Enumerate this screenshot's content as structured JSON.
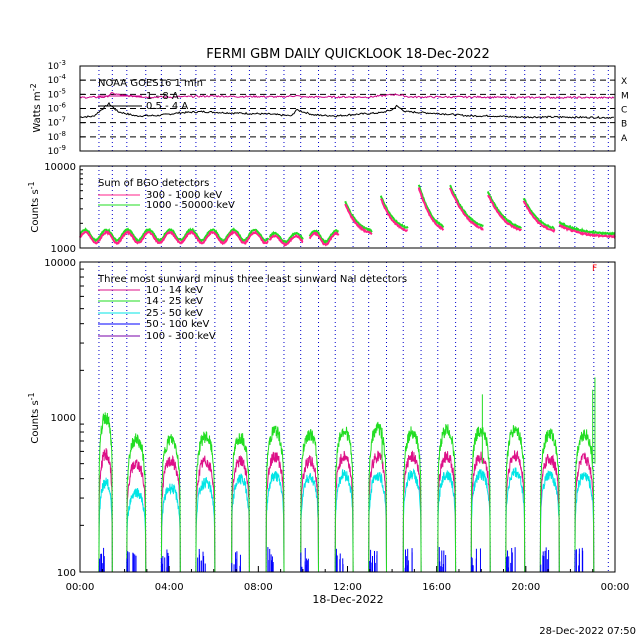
{
  "title": "FERMI GBM DAILY QUICKLOOK   18-Dec-2022",
  "footer_timestamp": "28-Dec-2022 07:50",
  "colors": {
    "axis": "#000000",
    "orbit_line": "#0000cc",
    "goes_short": "#cc0088",
    "goes_long": "#000000",
    "bgo_300_1000": "#ff2288",
    "bgo_1000_50000": "#22dd22",
    "nai_10_14": "#dd1188",
    "nai_14_25": "#22dd22",
    "nai_25_50": "#00e5e5",
    "nai_50_100": "#0000ff",
    "nai_100_300": "#7700aa",
    "flag": "#ff0000"
  },
  "chart_data": [
    {
      "id": "goes",
      "type": "line",
      "ylabel": "Watts m",
      "ylabel_sup": "-2",
      "yscale": "log",
      "ylim": [
        1e-09,
        0.001
      ],
      "xlim_hours": [
        0,
        24
      ],
      "y_ticks": [
        {
          "value": 0.001,
          "base": "10",
          "exp": "-3"
        },
        {
          "value": 0.0001,
          "base": "10",
          "exp": "-4"
        },
        {
          "value": 1e-05,
          "base": "10",
          "exp": "-5"
        },
        {
          "value": 1e-06,
          "base": "10",
          "exp": "-6"
        },
        {
          "value": 1e-07,
          "base": "10",
          "exp": "-7"
        },
        {
          "value": 1e-08,
          "base": "10",
          "exp": "-8"
        },
        {
          "value": 1e-09,
          "base": "10",
          "exp": "-9"
        }
      ],
      "flare_classes": [
        {
          "label": "X",
          "value": 0.0001
        },
        {
          "label": "M",
          "value": 1e-05
        },
        {
          "label": "C",
          "value": 1e-06
        },
        {
          "label": "B",
          "value": 1e-07
        },
        {
          "label": "A",
          "value": 1e-08
        }
      ],
      "legend_title": "NOAA GOES16 1 min",
      "series": [
        {
          "name": "1 - 8 A",
          "color_key": "goes_long",
          "points": [
            [
              0,
              2.5e-07
            ],
            [
              0.6,
              2.8e-07
            ],
            [
              1.3,
              2.2e-06
            ],
            [
              1.7,
              6e-07
            ],
            [
              2.5,
              3e-07
            ],
            [
              3.5,
              3.2e-07
            ],
            [
              4.5,
              5e-07
            ],
            [
              5.5,
              6e-07
            ],
            [
              6.5,
              5e-07
            ],
            [
              7.5,
              4.5e-07
            ],
            [
              8.5,
              4e-07
            ],
            [
              9.5,
              3e-07
            ],
            [
              9.7,
              8e-07
            ],
            [
              10.5,
              3.5e-07
            ],
            [
              11.5,
              3e-07
            ],
            [
              12.5,
              4e-07
            ],
            [
              13.5,
              5e-07
            ],
            [
              14.0,
              8e-07
            ],
            [
              14.2,
              1.5e-06
            ],
            [
              14.6,
              6e-07
            ],
            [
              15.5,
              5e-07
            ],
            [
              16.5,
              4e-07
            ],
            [
              17.5,
              3e-07
            ],
            [
              18.5,
              3e-07
            ],
            [
              19.5,
              2.5e-07
            ],
            [
              20.5,
              2.5e-07
            ],
            [
              21.5,
              2.5e-07
            ],
            [
              22.5,
              2.4e-07
            ],
            [
              23.5,
              2.3e-07
            ],
            [
              24,
              2.3e-07
            ]
          ]
        },
        {
          "name": "0.5 - 4 A",
          "color_key": "goes_short",
          "points": [
            [
              0,
              6e-06
            ],
            [
              1.2,
              6.5e-06
            ],
            [
              1.4,
              1.2e-05
            ],
            [
              2,
              8e-06
            ],
            [
              3,
              6.5e-06
            ],
            [
              4,
              6.5e-06
            ],
            [
              5,
              7e-06
            ],
            [
              6,
              7.5e-06
            ],
            [
              7,
              7e-06
            ],
            [
              8,
              7e-06
            ],
            [
              9,
              6.5e-06
            ],
            [
              9.7,
              8e-06
            ],
            [
              10,
              6.5e-06
            ],
            [
              11,
              6.5e-06
            ],
            [
              12,
              6.5e-06
            ],
            [
              13,
              6.5e-06
            ],
            [
              14.2,
              1e-05
            ],
            [
              14.8,
              6.5e-06
            ],
            [
              16,
              6.5e-06
            ],
            [
              17,
              6.5e-06
            ],
            [
              18,
              6.5e-06
            ],
            [
              19,
              6e-06
            ],
            [
              20,
              6e-06
            ],
            [
              21,
              6e-06
            ],
            [
              22,
              6e-06
            ],
            [
              23,
              5.8e-06
            ],
            [
              24,
              5.8e-06
            ]
          ]
        }
      ]
    },
    {
      "id": "bgo",
      "type": "line",
      "ylabel": "Counts s",
      "ylabel_sup": "-1",
      "yscale": "log",
      "ylim": [
        1000,
        10000
      ],
      "xlim_hours": [
        0,
        24
      ],
      "y_ticks": [
        {
          "value": 1000,
          "label": "1000"
        },
        {
          "value": 10000,
          "label": "10000"
        }
      ],
      "legend_title": "Sum of BGO detectors",
      "series": [
        {
          "name": "300 - 1000 keV",
          "color_key": "bgo_300_1000"
        },
        {
          "name": "1000 - 50000 keV",
          "color_key": "bgo_1000_50000"
        }
      ],
      "saa_segments": [
        {
          "start": 0.0,
          "end": 8.45,
          "base": 1350,
          "amp": 200,
          "period": 0.95,
          "decay_peak": 0
        },
        {
          "start": 8.5,
          "end": 10.0,
          "base": 1250,
          "amp": 150,
          "period": 0.95,
          "decay_peak": 0
        },
        {
          "start": 10.3,
          "end": 11.6,
          "base": 1300,
          "amp": 200,
          "period": 0.95,
          "decay_peak": 0
        },
        {
          "start": 11.9,
          "end": 13.1,
          "base": 1400,
          "amp": 0,
          "period": 1,
          "decay_peak": 3400
        },
        {
          "start": 13.5,
          "end": 14.7,
          "base": 1500,
          "amp": 0,
          "period": 1,
          "decay_peak": 4000
        },
        {
          "start": 15.2,
          "end": 16.3,
          "base": 1500,
          "amp": 0,
          "period": 1,
          "decay_peak": 5400
        },
        {
          "start": 16.6,
          "end": 18.1,
          "base": 1500,
          "amp": 0,
          "period": 1,
          "decay_peak": 5400
        },
        {
          "start": 18.3,
          "end": 19.8,
          "base": 1500,
          "amp": 0,
          "period": 1,
          "decay_peak": 4500
        },
        {
          "start": 19.9,
          "end": 21.3,
          "base": 1500,
          "amp": 0,
          "period": 1,
          "decay_peak": 3800
        },
        {
          "start": 21.5,
          "end": 24.0,
          "base": 1350,
          "amp": 0,
          "period": 1,
          "decay_peak": 1900
        }
      ]
    },
    {
      "id": "nai",
      "type": "line",
      "ylabel": "Counts s",
      "ylabel_sup": "-1",
      "yscale": "log",
      "ylim": [
        100,
        10000
      ],
      "xlim_hours": [
        0,
        24
      ],
      "xlabel": "18-Dec-2022",
      "x_ticks": [
        "00:00",
        "04:00",
        "08:00",
        "12:00",
        "16:00",
        "20:00",
        "00:00"
      ],
      "y_ticks": [
        {
          "value": 100,
          "label": "100"
        },
        {
          "value": 1000,
          "label": "1000"
        },
        {
          "value": 10000,
          "label": "10000"
        }
      ],
      "legend_title": "Three most sunward minus three least sunward NaI detectors",
      "flag_label": "F",
      "series": [
        {
          "name": "10 - 14 keV",
          "color_key": "nai_10_14"
        },
        {
          "name": "14 - 25 keV",
          "color_key": "nai_14_25"
        },
        {
          "name": "25 - 50 keV",
          "color_key": "nai_25_50"
        },
        {
          "name": "50 - 100 keV",
          "color_key": "nai_50_100"
        },
        {
          "name": "100 - 300 keV",
          "color_key": "nai_100_300"
        }
      ],
      "day_arcs": [
        {
          "start": 0.85,
          "end": 1.45,
          "green": 1000,
          "pink": 580,
          "cyan": 380
        },
        {
          "start": 2.1,
          "end": 2.95,
          "green": 720,
          "pink": 500,
          "cyan": 330
        },
        {
          "start": 3.65,
          "end": 4.5,
          "green": 720,
          "pink": 520,
          "cyan": 350
        },
        {
          "start": 5.2,
          "end": 6.05,
          "green": 750,
          "pink": 520,
          "cyan": 380
        },
        {
          "start": 6.8,
          "end": 7.6,
          "green": 740,
          "pink": 520,
          "cyan": 400
        },
        {
          "start": 8.35,
          "end": 9.15,
          "green": 820,
          "pink": 560,
          "cyan": 420
        },
        {
          "start": 9.9,
          "end": 10.7,
          "green": 780,
          "pink": 520,
          "cyan": 410
        },
        {
          "start": 11.45,
          "end": 12.25,
          "green": 820,
          "pink": 560,
          "cyan": 430
        },
        {
          "start": 12.95,
          "end": 13.75,
          "green": 850,
          "pink": 560,
          "cyan": 420
        },
        {
          "start": 14.5,
          "end": 15.3,
          "green": 800,
          "pink": 560,
          "cyan": 430
        },
        {
          "start": 16.05,
          "end": 16.85,
          "green": 830,
          "pink": 560,
          "cyan": 430
        },
        {
          "start": 17.55,
          "end": 18.4,
          "green": 820,
          "pink": 550,
          "cyan": 430
        },
        {
          "start": 19.1,
          "end": 19.95,
          "green": 830,
          "pink": 560,
          "cyan": 440
        },
        {
          "start": 20.65,
          "end": 21.5,
          "green": 780,
          "pink": 540,
          "cyan": 420
        },
        {
          "start": 22.2,
          "end": 23.05,
          "green": 780,
          "pink": 540,
          "cyan": 420
        }
      ],
      "spikes": [
        [
          13.55,
          850
        ],
        [
          18.05,
          1400
        ],
        [
          23.1,
          1800
        ],
        [
          23.0,
          1500
        ]
      ]
    }
  ],
  "orbit_boundaries_hours": [
    0.85,
    1.45,
    2.1,
    2.95,
    3.65,
    4.5,
    5.2,
    6.05,
    6.8,
    7.6,
    8.35,
    9.15,
    9.9,
    10.7,
    11.45,
    12.25,
    12.95,
    13.75,
    14.5,
    15.3,
    16.05,
    16.85,
    17.55,
    18.4,
    19.1,
    19.95,
    20.65,
    21.5,
    22.2,
    23.05,
    23.7
  ]
}
